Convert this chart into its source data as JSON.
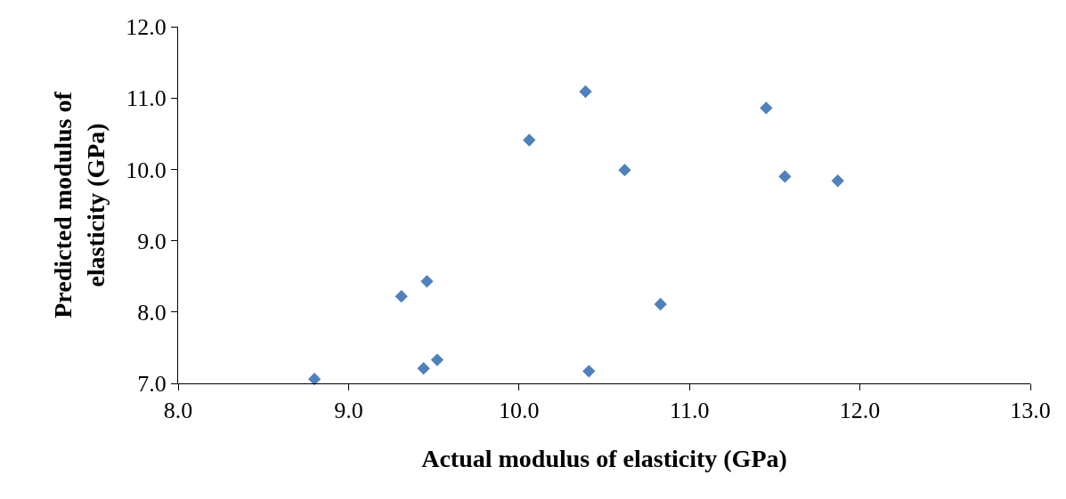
{
  "chart_data": {
    "type": "scatter",
    "xlabel": "Actual modulus of elasticity (GPa)",
    "ylabel": "Predicted modulus of elasticity (GPa)",
    "x": [
      8.8,
      9.31,
      9.46,
      9.44,
      9.52,
      10.06,
      10.39,
      10.41,
      10.62,
      10.83,
      11.45,
      11.56,
      11.87
    ],
    "series": [
      {
        "color": "#4f81bd",
        "values": [
          7.06,
          8.22,
          8.43,
          7.21,
          7.33,
          10.41,
          11.09,
          7.17,
          9.99,
          8.11,
          10.86,
          9.9,
          9.84
        ]
      }
    ],
    "xlim": [
      8,
      13
    ],
    "xticks": [
      {
        "value": 8,
        "label": "8.0"
      },
      {
        "value": 9,
        "label": "9.0"
      },
      {
        "value": 10,
        "label": "10.0"
      },
      {
        "value": 11,
        "label": "11.0"
      },
      {
        "value": 12,
        "label": "12.0"
      },
      {
        "value": 13,
        "label": "13.0"
      }
    ],
    "ylim": [
      7,
      12
    ],
    "yticks": [
      {
        "value": 7,
        "label": "7.0"
      },
      {
        "value": 8,
        "label": "8.0"
      },
      {
        "value": 9,
        "label": "9.0"
      },
      {
        "value": 10,
        "label": "10.0"
      },
      {
        "value": 11,
        "label": "11.0"
      },
      {
        "value": 12,
        "label": "12.0"
      }
    ],
    "marker": "diamond",
    "legend": false
  }
}
